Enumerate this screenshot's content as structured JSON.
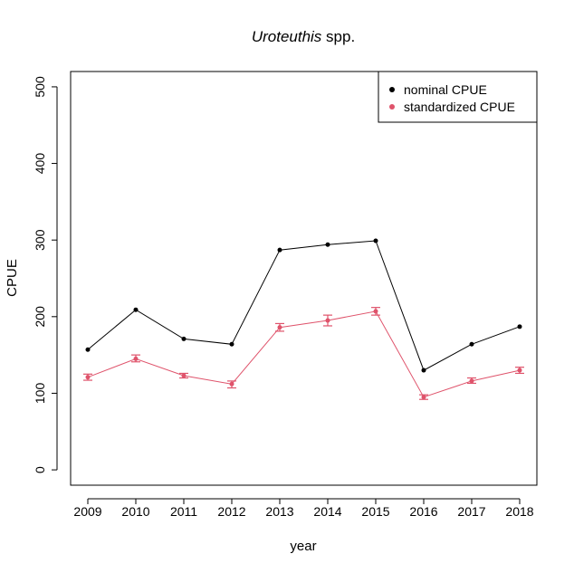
{
  "chart_data": {
    "type": "line",
    "title": {
      "italic": "Uroteuthis",
      "rest": " spp."
    },
    "xlabel": "year",
    "ylabel": "CPUE",
    "x": [
      2009,
      2010,
      2011,
      2012,
      2013,
      2014,
      2015,
      2016,
      2017,
      2018
    ],
    "x_tick_labels": [
      "2009",
      "2010",
      "2011",
      "2012",
      "2013",
      "2014",
      "2015",
      "2016",
      "2017",
      "2018"
    ],
    "ylim": [
      -20,
      520
    ],
    "y_ticks": [
      0,
      100,
      200,
      300,
      400,
      500
    ],
    "y_tick_labels": [
      "0",
      "100",
      "200",
      "300",
      "400",
      "500"
    ],
    "grid": false,
    "legend_position": "top-right",
    "series": [
      {
        "name": "nominal CPUE",
        "color": "#000000",
        "values": [
          157,
          209,
          171,
          164,
          287,
          294,
          299,
          130,
          164,
          187
        ]
      },
      {
        "name": "standardized CPUE",
        "color": "#DF536B",
        "values": [
          121,
          145,
          123,
          112,
          186,
          195,
          207,
          95,
          116,
          130
        ],
        "error_low": [
          117,
          141,
          120,
          107,
          181,
          188,
          202,
          92,
          113,
          126
        ],
        "error_high": [
          125,
          150,
          126,
          116,
          191,
          202,
          212,
          98,
          120,
          134
        ]
      }
    ]
  }
}
